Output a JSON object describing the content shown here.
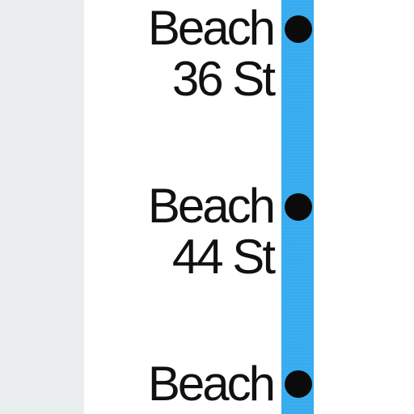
{
  "colors": {
    "land": "#e9edee",
    "route_line": "#3aaef0",
    "station_dot": "#0b0b0b",
    "label_text": "#111111",
    "background": "#ffffff"
  },
  "stations": [
    {
      "line1": "Beach",
      "line2": "36 St"
    },
    {
      "line1": "Beach",
      "line2": "44 St"
    },
    {
      "line1": "Beach",
      "line2": ""
    }
  ]
}
